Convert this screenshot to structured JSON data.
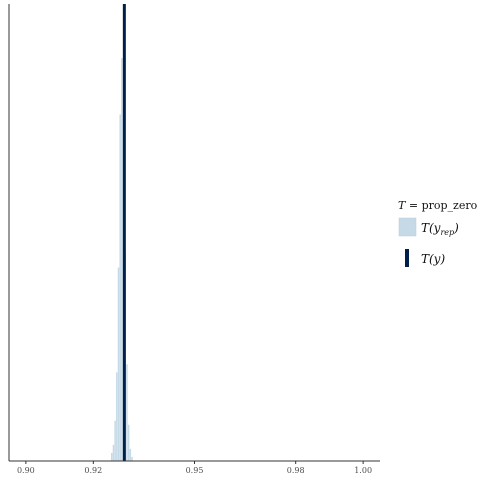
{
  "chart_data": {
    "type": "histogram",
    "title": "",
    "xlabel": "",
    "ylabel": "",
    "xlim": [
      0.895,
      1.005
    ],
    "x_ticks": [
      0.9,
      0.92,
      0.95,
      0.98,
      1.0
    ],
    "x_tick_labels": [
      "0.90",
      "0.92",
      "0.95",
      "0.98",
      "1.00"
    ],
    "bins": [
      {
        "x": 0.9255,
        "count": 2
      },
      {
        "x": 0.926,
        "count": 4
      },
      {
        "x": 0.9265,
        "count": 10
      },
      {
        "x": 0.927,
        "count": 22
      },
      {
        "x": 0.9275,
        "count": 48
      },
      {
        "x": 0.928,
        "count": 86
      },
      {
        "x": 0.9285,
        "count": 100
      },
      {
        "x": 0.929,
        "count": 88
      },
      {
        "x": 0.9295,
        "count": 52
      },
      {
        "x": 0.93,
        "count": 24
      },
      {
        "x": 0.9305,
        "count": 9
      },
      {
        "x": 0.931,
        "count": 3
      },
      {
        "x": 0.9315,
        "count": 1
      }
    ],
    "bin_width": 0.0005,
    "observed": {
      "name": "T(y)",
      "value": 0.9292
    },
    "grid": false,
    "legend_position": "right",
    "colors": {
      "replicated": "#c6d9e6",
      "observed": "#011f4b"
    }
  },
  "legend": {
    "title_var": "T",
    "title_eq": " = ",
    "title_stat": "prop_zero",
    "rep_label_main": "T(y",
    "rep_label_sub": "rep",
    "rep_label_close": ")",
    "obs_label": "T(y)"
  }
}
